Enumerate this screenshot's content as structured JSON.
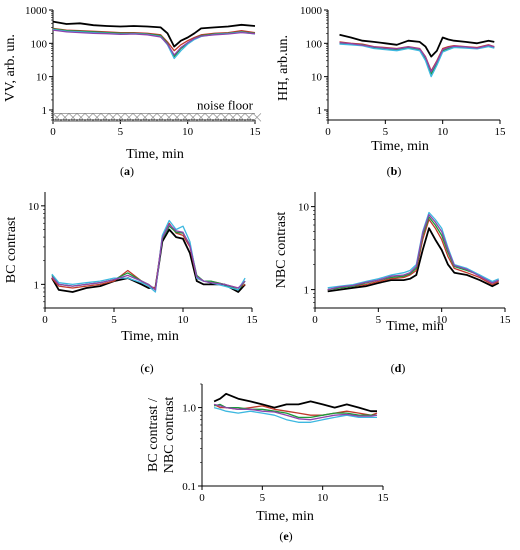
{
  "colors": {
    "series": [
      "#000000",
      "#c0392b",
      "#1a9a3a",
      "#3db8e0",
      "#8e44ad",
      "#c9a227"
    ],
    "axis": "#000000",
    "noise_floor": "#888888"
  },
  "panels": [
    {
      "caption": "a"
    },
    {
      "caption": "b"
    },
    {
      "caption": "c"
    },
    {
      "caption": "d"
    },
    {
      "caption": "e"
    }
  ],
  "chart_data": [
    {
      "type": "line",
      "scale_y": "log",
      "ylabel": "VV, arb. un.",
      "xlabel": "Time, min",
      "xlim": [
        0,
        15
      ],
      "ylim": [
        0.5,
        1000
      ],
      "x_ticks": [
        0,
        5,
        10,
        15
      ],
      "y_ticks": [
        1,
        10,
        100,
        1000
      ],
      "annotation": "noise floor",
      "noise_floor_level": 0.6,
      "x": [
        0,
        1,
        2,
        3,
        4,
        5,
        6,
        7,
        8,
        8.5,
        9,
        9.5,
        10,
        10.5,
        11,
        12,
        13,
        14,
        15
      ],
      "series": [
        {
          "values": [
            450,
            380,
            400,
            350,
            330,
            320,
            330,
            320,
            300,
            200,
            80,
            120,
            150,
            200,
            280,
            300,
            320,
            360,
            330
          ]
        },
        {
          "values": [
            280,
            250,
            240,
            230,
            220,
            210,
            210,
            200,
            180,
            110,
            60,
            90,
            120,
            150,
            180,
            200,
            210,
            240,
            210
          ]
        },
        {
          "values": [
            270,
            240,
            230,
            220,
            210,
            200,
            200,
            190,
            170,
            100,
            40,
            70,
            100,
            140,
            170,
            190,
            200,
            220,
            200
          ]
        },
        {
          "values": [
            260,
            230,
            220,
            210,
            200,
            190,
            195,
            185,
            160,
            90,
            35,
            60,
            95,
            130,
            160,
            185,
            195,
            215,
            190
          ]
        },
        {
          "values": [
            250,
            220,
            210,
            200,
            195,
            185,
            190,
            180,
            155,
            95,
            45,
            75,
            105,
            140,
            165,
            180,
            190,
            210,
            195
          ]
        }
      ]
    },
    {
      "type": "line",
      "scale_y": "log",
      "ylabel": "HH, arb.un.",
      "xlabel": "Time, min",
      "xlim": [
        0,
        15
      ],
      "ylim": [
        0.5,
        1000
      ],
      "x_ticks": [
        0,
        5,
        10,
        15
      ],
      "y_ticks": [
        1,
        10,
        100,
        1000
      ],
      "x": [
        1,
        2,
        3,
        4,
        5,
        6,
        7,
        8,
        8.5,
        9,
        9.5,
        10,
        10.5,
        11,
        12,
        13,
        14,
        14.5
      ],
      "series": [
        {
          "values": [
            180,
            150,
            120,
            110,
            100,
            90,
            120,
            110,
            80,
            40,
            60,
            150,
            130,
            120,
            110,
            100,
            120,
            110
          ]
        },
        {
          "values": [
            110,
            100,
            95,
            80,
            75,
            70,
            80,
            70,
            40,
            15,
            30,
            70,
            80,
            85,
            80,
            75,
            90,
            80
          ]
        },
        {
          "values": [
            100,
            95,
            90,
            75,
            70,
            65,
            75,
            65,
            35,
            12,
            25,
            60,
            70,
            80,
            75,
            70,
            85,
            75
          ]
        },
        {
          "values": [
            95,
            90,
            85,
            70,
            65,
            60,
            70,
            60,
            30,
            10,
            22,
            55,
            65,
            75,
            72,
            68,
            80,
            72
          ]
        },
        {
          "values": [
            105,
            98,
            88,
            78,
            72,
            68,
            78,
            68,
            38,
            14,
            28,
            65,
            75,
            82,
            78,
            72,
            88,
            78
          ]
        }
      ]
    },
    {
      "type": "line",
      "scale_y": "log",
      "ylabel": "BC contrast",
      "xlabel": "Time, min",
      "xlim": [
        0,
        15
      ],
      "ylim": [
        0.5,
        15
      ],
      "x_ticks": [
        0,
        5,
        10,
        15
      ],
      "y_ticks": [
        1,
        10
      ],
      "x": [
        0.5,
        1,
        2,
        3,
        4,
        5,
        6,
        7,
        7.5,
        8,
        8.5,
        9,
        9.5,
        10,
        10.5,
        11,
        11.5,
        12,
        13,
        14,
        14.5
      ],
      "series": [
        {
          "values": [
            1.2,
            0.85,
            0.8,
            0.9,
            0.95,
            1.1,
            1.2,
            1.0,
            0.9,
            0.9,
            3.5,
            5.0,
            4.0,
            3.8,
            2.5,
            1.1,
            1.0,
            1.0,
            1.0,
            0.8,
            1.0
          ]
        },
        {
          "values": [
            1.2,
            0.95,
            0.9,
            0.95,
            1.0,
            1.1,
            1.5,
            1.1,
            0.95,
            0.9,
            4.0,
            6.0,
            4.5,
            4.2,
            3.0,
            1.2,
            1.1,
            1.1,
            1.0,
            0.9,
            1.0
          ]
        },
        {
          "values": [
            1.3,
            1.0,
            0.95,
            1.0,
            1.05,
            1.15,
            1.4,
            1.1,
            1.0,
            0.85,
            3.8,
            5.5,
            4.6,
            4.5,
            3.2,
            1.3,
            1.1,
            1.1,
            1.0,
            0.85,
            1.1
          ]
        },
        {
          "values": [
            1.35,
            1.05,
            1.0,
            1.05,
            1.1,
            1.2,
            1.2,
            1.05,
            0.95,
            0.8,
            4.2,
            6.5,
            5.0,
            5.5,
            3.5,
            1.2,
            1.1,
            1.05,
            0.95,
            0.85,
            1.2
          ]
        },
        {
          "values": [
            1.25,
            1.0,
            0.95,
            1.0,
            1.05,
            1.15,
            1.3,
            1.1,
            1.0,
            0.85,
            3.9,
            5.8,
            4.8,
            4.6,
            3.1,
            1.25,
            1.1,
            1.05,
            1.0,
            0.9,
            1.1
          ]
        }
      ]
    },
    {
      "type": "line",
      "scale_y": "log",
      "ylabel": "NBC contrast",
      "xlabel": "Time, min",
      "xlim": [
        0,
        15
      ],
      "ylim": [
        0.6,
        15
      ],
      "x_ticks": [
        0,
        5,
        10,
        15
      ],
      "y_ticks": [
        1,
        10
      ],
      "x": [
        1,
        2,
        3,
        4,
        5,
        6,
        7,
        7.5,
        8,
        8.5,
        9,
        9.5,
        10,
        10.5,
        11,
        12,
        13,
        14,
        14.5
      ],
      "series": [
        {
          "values": [
            0.95,
            1.0,
            1.05,
            1.1,
            1.2,
            1.3,
            1.3,
            1.35,
            1.5,
            3.0,
            5.5,
            4.0,
            3.0,
            2.0,
            1.6,
            1.5,
            1.3,
            1.1,
            1.2
          ]
        },
        {
          "values": [
            1.0,
            1.05,
            1.1,
            1.15,
            1.25,
            1.35,
            1.4,
            1.5,
            1.7,
            4.0,
            7.0,
            5.5,
            4.0,
            2.5,
            1.8,
            1.6,
            1.4,
            1.15,
            1.25
          ]
        },
        {
          "values": [
            1.0,
            1.05,
            1.1,
            1.2,
            1.3,
            1.4,
            1.45,
            1.55,
            1.8,
            4.5,
            7.5,
            6.0,
            4.5,
            2.8,
            1.9,
            1.7,
            1.5,
            1.2,
            1.3
          ]
        },
        {
          "values": [
            1.05,
            1.1,
            1.15,
            1.25,
            1.35,
            1.5,
            1.6,
            1.7,
            2.0,
            5.0,
            8.5,
            7.0,
            5.5,
            3.2,
            2.0,
            1.8,
            1.5,
            1.25,
            1.35
          ]
        },
        {
          "values": [
            1.0,
            1.08,
            1.12,
            1.22,
            1.3,
            1.45,
            1.5,
            1.6,
            1.9,
            4.8,
            8.0,
            6.5,
            5.0,
            3.0,
            1.95,
            1.75,
            1.45,
            1.2,
            1.3
          ]
        }
      ]
    },
    {
      "type": "line",
      "scale_y": "log",
      "ylabel": "BC contrast / NBC contrast",
      "xlabel": "Time, min",
      "xlim": [
        0,
        15
      ],
      "ylim": [
        0.1,
        2
      ],
      "x_ticks": [
        0,
        5,
        10,
        15
      ],
      "y_ticks": [
        0.1,
        1.0
      ],
      "y_tick_labels": [
        "0.1",
        "1.0"
      ],
      "x": [
        1,
        1.5,
        2,
        3,
        4,
        5,
        6,
        7,
        8,
        9,
        10,
        11,
        12,
        13,
        14,
        14.5
      ],
      "series": [
        {
          "values": [
            1.2,
            1.3,
            1.5,
            1.3,
            1.2,
            1.1,
            1.0,
            1.1,
            1.1,
            1.2,
            1.1,
            1.0,
            1.1,
            1.0,
            0.9,
            0.9
          ]
        },
        {
          "values": [
            1.1,
            1.0,
            1.0,
            0.95,
            1.0,
            1.05,
            0.95,
            0.9,
            0.85,
            0.8,
            0.8,
            0.85,
            0.9,
            0.85,
            0.8,
            0.85
          ]
        },
        {
          "values": [
            1.05,
            1.1,
            1.0,
            1.0,
            0.95,
            0.95,
            0.9,
            0.85,
            0.75,
            0.75,
            0.8,
            0.85,
            0.85,
            0.8,
            0.8,
            0.8
          ]
        },
        {
          "values": [
            1.0,
            0.95,
            0.9,
            0.85,
            0.9,
            0.85,
            0.8,
            0.7,
            0.65,
            0.65,
            0.7,
            0.75,
            0.8,
            0.75,
            0.75,
            0.75
          ]
        },
        {
          "values": [
            1.1,
            1.05,
            1.0,
            0.95,
            0.95,
            0.9,
            0.88,
            0.8,
            0.72,
            0.7,
            0.75,
            0.8,
            0.82,
            0.78,
            0.78,
            0.8
          ]
        }
      ]
    }
  ]
}
